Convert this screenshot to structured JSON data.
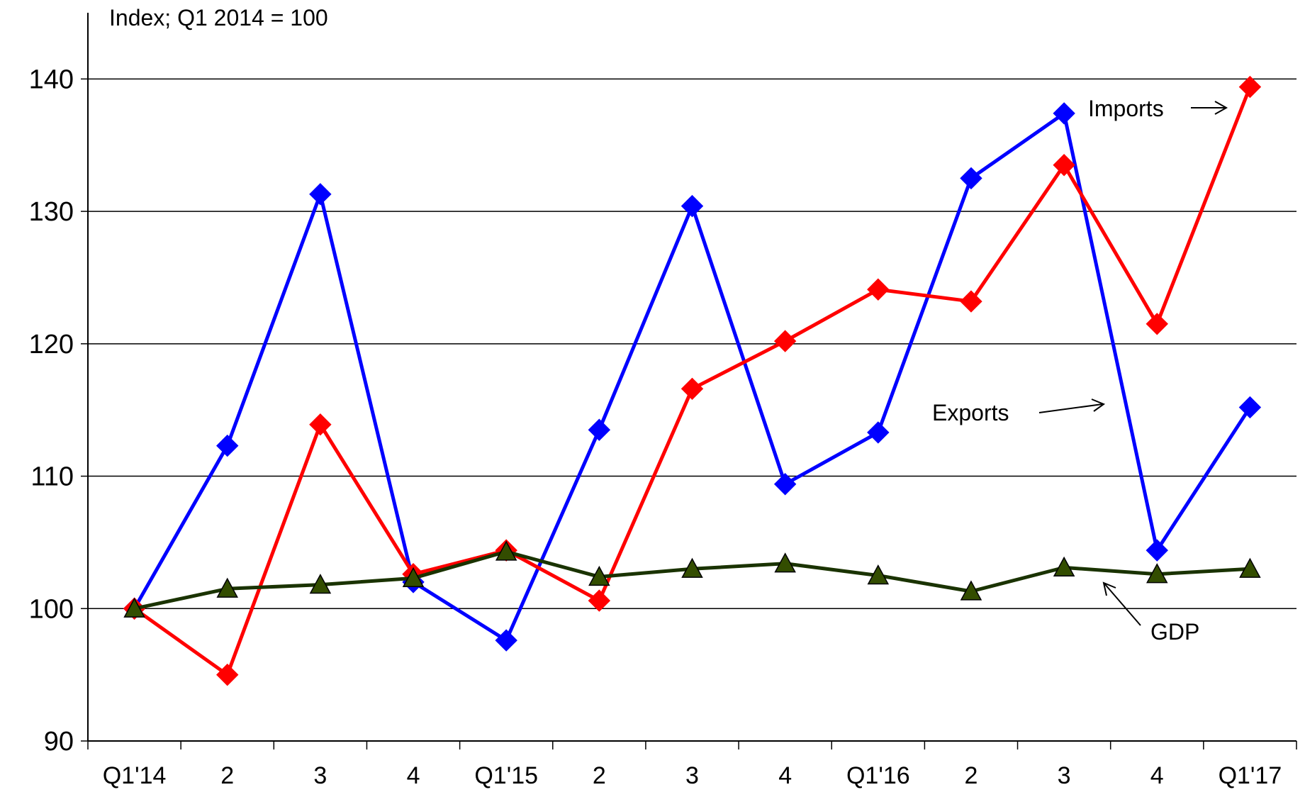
{
  "chart_data": {
    "type": "line",
    "title": "",
    "ylabel": "Index; Q1 2014 = 100",
    "xlabel": "",
    "categories": [
      "Q1'14",
      "2",
      "3",
      "4",
      "Q1'15",
      "2",
      "3",
      "4",
      "Q1'16",
      "2",
      "3",
      "4",
      "Q1'17"
    ],
    "ylim": [
      90,
      145
    ],
    "yticks": [
      90,
      100,
      110,
      120,
      130,
      140
    ],
    "grid": true,
    "series": [
      {
        "name": "Exports",
        "color": "#0000ff",
        "marker": "diamond",
        "values": [
          100.0,
          112.3,
          131.3,
          102.0,
          97.6,
          113.5,
          130.4,
          109.4,
          113.3,
          132.5,
          137.4,
          104.4,
          115.2
        ]
      },
      {
        "name": "Imports",
        "color": "#ff0000",
        "marker": "diamond",
        "values": [
          100.0,
          95.0,
          113.9,
          102.6,
          104.4,
          100.6,
          116.6,
          120.2,
          124.1,
          123.2,
          133.5,
          121.5,
          139.4
        ]
      },
      {
        "name": "GDP",
        "color": "#1a3300",
        "marker": "triangle",
        "values": [
          100.0,
          101.5,
          101.8,
          102.3,
          104.3,
          102.4,
          103.0,
          103.4,
          102.5,
          101.3,
          103.1,
          102.6,
          103.0
        ]
      }
    ],
    "annotations": [
      {
        "text": "Imports",
        "series": "Imports"
      },
      {
        "text": "Exports",
        "series": "Exports"
      },
      {
        "text": "GDP",
        "series": "GDP"
      }
    ]
  }
}
